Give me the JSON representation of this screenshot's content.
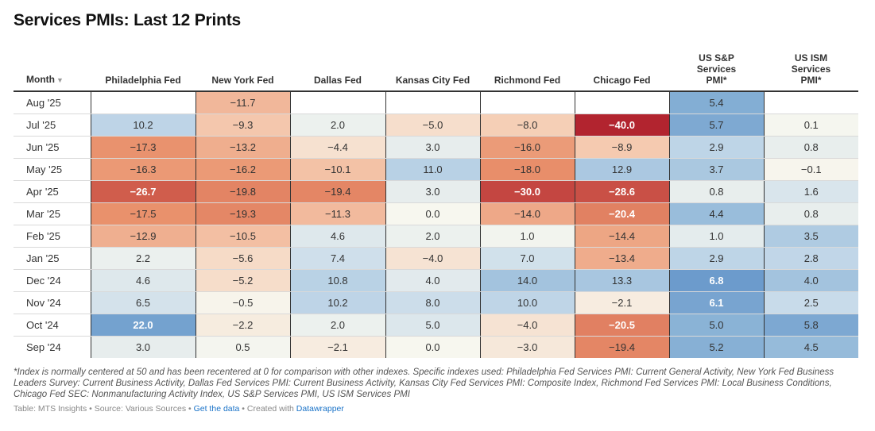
{
  "title": "Services PMIs: Last 12 Prints",
  "month_header": "Month",
  "sort_icon": "sort-down-triangle",
  "footnote": "*Index is normally centered at 50 and has been recentered at 0 for comparison with other indexes. Specific indexes used: Philadelphia Fed Services PMI: Current General Activity, New York Fed Business Leaders Survey: Current Business Activity, Dallas Fed Services PMI: Current Business Activity, Kansas City Fed Services PMI: Composite Index, Richmond Fed Services PMI: Local Business Conditions, Chicago Fed SEC: Nonmanufacturing Activity Index, US S&P Services PMI, US ISM Services PMI",
  "credit": {
    "table_source": "Table: MTS Insights • Source: Various Sources • ",
    "get_data": "Get the data",
    "created_with": " • Created with ",
    "datawrapper": "Datawrapper"
  },
  "colors": {
    "positive_max": "#2e5fac",
    "negative_max": "#b2242f",
    "neutral": "#f7f7ef",
    "small_scale_positive": "#8ab3d6",
    "header_rule": "#333333"
  },
  "chart_data": {
    "type": "table",
    "columns": [
      "Philadelphia Fed",
      "New York Fed",
      "Dallas Fed",
      "Kansas City Fed",
      "Richmond Fed",
      "Chicago Fed",
      "US S&P Services PMI*",
      "US ISM Services PMI*"
    ],
    "rows": [
      {
        "month": "Aug '25",
        "values": [
          null,
          -11.7,
          null,
          null,
          null,
          null,
          5.4,
          null
        ]
      },
      {
        "month": "Jul '25",
        "values": [
          10.2,
          -9.3,
          2.0,
          -5.0,
          -8.0,
          -40.0,
          5.7,
          0.1
        ]
      },
      {
        "month": "Jun '25",
        "values": [
          -17.3,
          -13.2,
          -4.4,
          3.0,
          -16.0,
          -8.9,
          2.9,
          0.8
        ]
      },
      {
        "month": "May '25",
        "values": [
          -16.3,
          -16.2,
          -10.1,
          11.0,
          -18.0,
          12.9,
          3.7,
          -0.1
        ]
      },
      {
        "month": "Apr '25",
        "values": [
          -26.7,
          -19.8,
          -19.4,
          3.0,
          -30.0,
          -28.6,
          0.8,
          1.6
        ]
      },
      {
        "month": "Mar '25",
        "values": [
          -17.5,
          -19.3,
          -11.3,
          0.0,
          -14.0,
          -20.4,
          4.4,
          0.8
        ]
      },
      {
        "month": "Feb '25",
        "values": [
          -12.9,
          -10.5,
          4.6,
          2.0,
          1.0,
          -14.4,
          1.0,
          3.5
        ]
      },
      {
        "month": "Jan '25",
        "values": [
          2.2,
          -5.6,
          7.4,
          -4.0,
          7.0,
          -13.4,
          2.9,
          2.8
        ]
      },
      {
        "month": "Dec '24",
        "values": [
          4.6,
          -5.2,
          10.8,
          4.0,
          14.0,
          13.3,
          6.8,
          4.0
        ]
      },
      {
        "month": "Nov '24",
        "values": [
          6.5,
          -0.5,
          10.2,
          8.0,
          10.0,
          -2.1,
          6.1,
          2.5
        ]
      },
      {
        "month": "Oct '24",
        "values": [
          22.0,
          -2.2,
          2.0,
          5.0,
          -4.0,
          -20.5,
          5.0,
          5.8
        ]
      },
      {
        "month": "Sep '24",
        "values": [
          3.0,
          0.5,
          -2.1,
          0.0,
          -3.0,
          -19.4,
          5.2,
          4.5
        ]
      }
    ]
  }
}
